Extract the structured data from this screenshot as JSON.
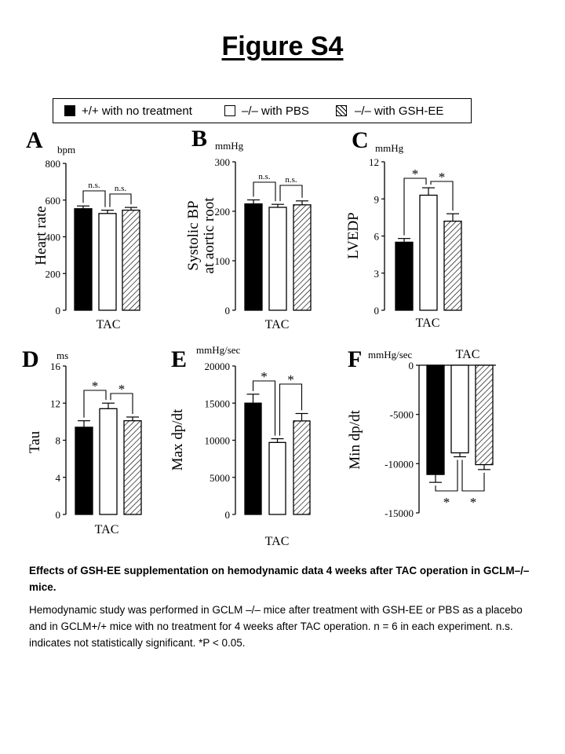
{
  "figure_title": "Figure S4",
  "legend": {
    "items": [
      {
        "label": "+/+ with no treatment",
        "style": "black"
      },
      {
        "label": "–/– with PBS",
        "style": "white"
      },
      {
        "label": "–/– with GSH-EE",
        "style": "hatch"
      }
    ]
  },
  "chart_data": [
    {
      "panel": "A",
      "type": "bar",
      "unit": "bpm",
      "ylabel": "Heart rate",
      "xlabel": "TAC",
      "ylim": [
        0,
        800
      ],
      "ticks": [
        0,
        200,
        400,
        600,
        800
      ],
      "groups": [
        "+/+ with no treatment",
        "–/– with PBS",
        "–/– with GSH-EE"
      ],
      "values": [
        553,
        527,
        545
      ],
      "errors": [
        15,
        18,
        15
      ],
      "sig": [
        {
          "from": 0,
          "to": 1,
          "label": "n.s."
        },
        {
          "from": 1,
          "to": 2,
          "label": "n.s."
        }
      ]
    },
    {
      "panel": "B",
      "type": "bar",
      "unit": "mmHg",
      "ylabel": "Systolic BP at aortic root",
      "ylabel_lines": [
        "Systolic BP",
        "at aortic root"
      ],
      "xlabel": "TAC",
      "ylim": [
        0,
        300
      ],
      "ticks": [
        0,
        100,
        200,
        300
      ],
      "groups": [
        "+/+ with no treatment",
        "–/– with PBS",
        "–/– with GSH-EE"
      ],
      "values": [
        215,
        208,
        213
      ],
      "errors": [
        8,
        6,
        8
      ],
      "sig": [
        {
          "from": 0,
          "to": 1,
          "label": "n.s."
        },
        {
          "from": 1,
          "to": 2,
          "label": "n.s."
        }
      ]
    },
    {
      "panel": "C",
      "type": "bar",
      "unit": "mmHg",
      "ylabel": "LVEDP",
      "xlabel": "TAC",
      "ylim": [
        0,
        12
      ],
      "ticks": [
        0,
        3,
        6,
        9,
        12
      ],
      "groups": [
        "+/+ with no treatment",
        "–/– with PBS",
        "–/– with GSH-EE"
      ],
      "values": [
        5.5,
        9.3,
        7.2
      ],
      "errors": [
        0.3,
        0.6,
        0.6
      ],
      "sig": [
        {
          "from": 0,
          "to": 1,
          "label": "*"
        },
        {
          "from": 1,
          "to": 2,
          "label": "*"
        }
      ]
    },
    {
      "panel": "D",
      "type": "bar",
      "unit": "ms",
      "ylabel": "Tau",
      "xlabel": "TAC",
      "ylim": [
        0,
        16
      ],
      "ticks": [
        0,
        4,
        8,
        12,
        16
      ],
      "groups": [
        "+/+ with no treatment",
        "–/– with PBS",
        "–/– with GSH-EE"
      ],
      "values": [
        9.4,
        11.4,
        10.1
      ],
      "errors": [
        0.7,
        0.6,
        0.4
      ],
      "sig": [
        {
          "from": 0,
          "to": 1,
          "label": "*"
        },
        {
          "from": 1,
          "to": 2,
          "label": "*"
        }
      ]
    },
    {
      "panel": "E",
      "type": "bar",
      "unit": "mmHg/sec",
      "ylabel": "Max   dp/dt",
      "xlabel": "TAC",
      "ylim": [
        0,
        20000
      ],
      "ticks": [
        0,
        5000,
        10000,
        15000,
        20000
      ],
      "groups": [
        "+/+ with no treatment",
        "–/– with PBS",
        "–/– with GSH-EE"
      ],
      "values": [
        15000,
        9700,
        12600
      ],
      "errors": [
        1200,
        500,
        1000
      ],
      "sig": [
        {
          "from": 0,
          "to": 1,
          "label": "*"
        },
        {
          "from": 1,
          "to": 2,
          "label": "*"
        }
      ]
    },
    {
      "panel": "F",
      "type": "bar",
      "unit": "mmHg/sec",
      "ylabel": "Min   dp/dt",
      "xlabel": "TAC",
      "ylim": [
        -15000,
        0
      ],
      "ticks": [
        0,
        -5000,
        -10000,
        -15000
      ],
      "groups": [
        "+/+ with no treatment",
        "–/– with PBS",
        "–/– with GSH-EE"
      ],
      "values": [
        -11100,
        -8900,
        -10100
      ],
      "errors": [
        800,
        400,
        500
      ],
      "sig": [
        {
          "from": 0,
          "to": 1,
          "label": "*"
        },
        {
          "from": 1,
          "to": 2,
          "label": "*"
        }
      ]
    }
  ],
  "caption": {
    "heading": "Effects of GSH-EE supplementation on hemodynamic data 4 weeks after TAC operation in GCLM–/– mice.",
    "body": "Hemodynamic study was performed in GCLM –/– mice after treatment with GSH-EE or PBS as a placebo and in GCLM+/+ mice with no treatment for 4 weeks after TAC operation. n = 6 in each experiment. n.s. indicates not statistically significant. *P < 0.05."
  }
}
